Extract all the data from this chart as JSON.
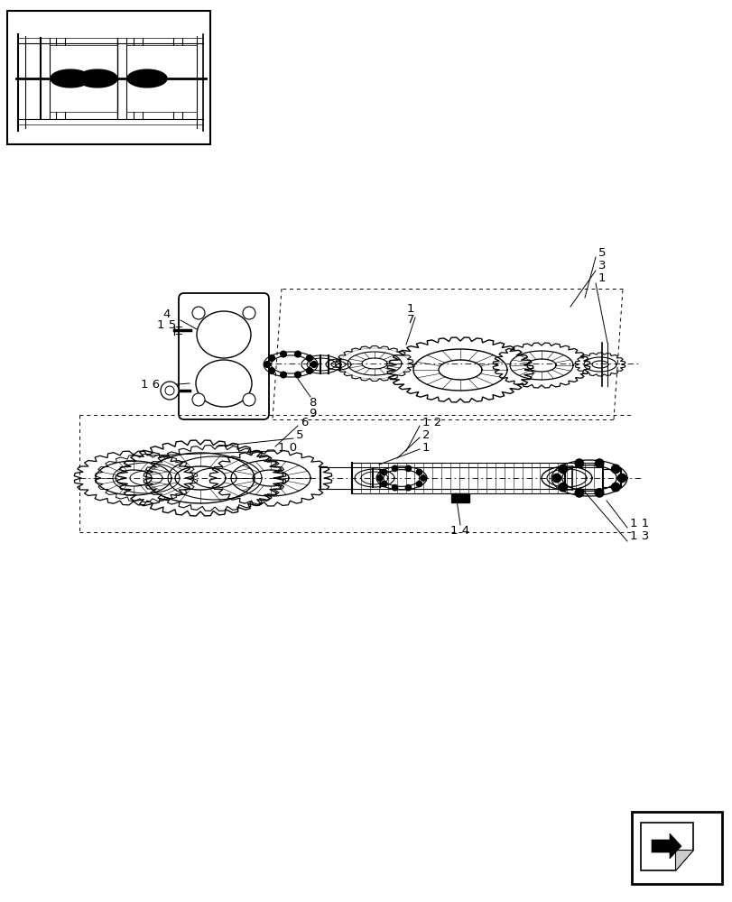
{
  "bg_color": "#ffffff",
  "fig_width": 8.12,
  "fig_height": 10.0,
  "dpi": 100
}
